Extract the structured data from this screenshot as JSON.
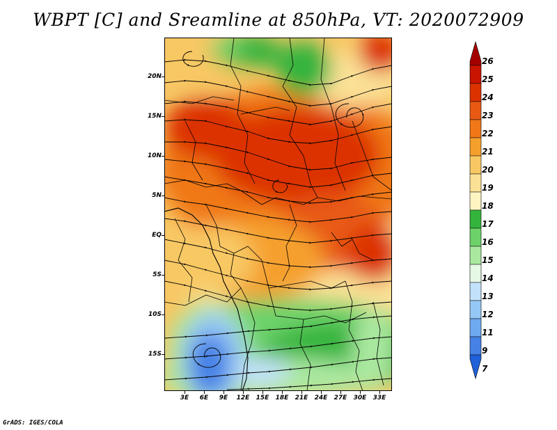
{
  "title": "WBPT [C] and Sreamline at 850hPa, VT: 2020072909",
  "footer": "GrADS: IGES/COLA",
  "map": {
    "lat_labels": [
      "20N",
      "15N",
      "10N",
      "5N",
      "EQ",
      "5S",
      "10S",
      "15S"
    ],
    "lon_labels": [
      "3E",
      "6E",
      "9E",
      "12E",
      "15E",
      "18E",
      "21E",
      "24E",
      "27E",
      "30E",
      "33E"
    ],
    "lon_range": [
      0,
      34.5
    ],
    "lat_range": [
      -20,
      25
    ]
  },
  "colorbar": {
    "levels": [
      "26",
      "25",
      "24",
      "23",
      "22",
      "21",
      "20",
      "19",
      "18",
      "17",
      "16",
      "15",
      "14",
      "13",
      "12",
      "11",
      "9",
      "7"
    ],
    "colors": [
      "#a40000",
      "#c81400",
      "#dc3200",
      "#e85a14",
      "#f07818",
      "#f5a02d",
      "#f8c864",
      "#fbe196",
      "#fff5c3",
      "#34b43c",
      "#6dd26a",
      "#aae8a0",
      "#e6f8e6",
      "#c3e1fa",
      "#96c8f5",
      "#6eaaf0",
      "#4682e6",
      "#2060d8"
    ]
  }
}
